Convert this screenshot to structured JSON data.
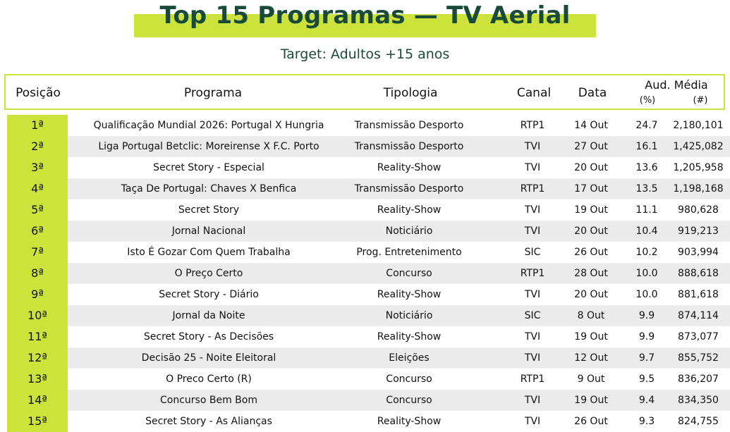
{
  "title": "Top 15 Programas — TV Aerial",
  "subtitle": "Target: Adultos +15 anos",
  "header": {
    "posicao": "Posição",
    "programa": "Programa",
    "tipologia": "Tipologia",
    "canal": "Canal",
    "data": "Data",
    "aud_media": "Aud. Média",
    "pct": "(%)",
    "num": "(#)"
  },
  "colors": {
    "accent": "#cbe33a",
    "title": "#1a4a38",
    "alt_row": "#ebebeb"
  },
  "rows": [
    {
      "pos": "1ª",
      "programa": "Qualificação Mundial 2026: Portugal X Hungria",
      "tipologia": "Transmissão Desporto",
      "canal": "RTP1",
      "data": "14 Out",
      "pct": "24.7",
      "num": "2,180,101"
    },
    {
      "pos": "2ª",
      "programa": "Liga Portugal Betclic: Moreirense X F.C. Porto",
      "tipologia": "Transmissão Desporto",
      "canal": "TVI",
      "data": "27 Out",
      "pct": "16.1",
      "num": "1,425,082"
    },
    {
      "pos": "3ª",
      "programa": "Secret Story - Especial",
      "tipologia": "Reality-Show",
      "canal": "TVI",
      "data": "20 Out",
      "pct": "13.6",
      "num": "1,205,958"
    },
    {
      "pos": "4ª",
      "programa": "Taça De Portugal: Chaves X Benfica",
      "tipologia": "Transmissão Desporto",
      "canal": "RTP1",
      "data": "17 Out",
      "pct": "13.5",
      "num": "1,198,168"
    },
    {
      "pos": "5ª",
      "programa": "Secret Story",
      "tipologia": "Reality-Show",
      "canal": "TVI",
      "data": "19 Out",
      "pct": "11.1",
      "num": "980,628"
    },
    {
      "pos": "6ª",
      "programa": "Jornal Nacional",
      "tipologia": "Noticiário",
      "canal": "TVI",
      "data": "20 Out",
      "pct": "10.4",
      "num": "919,213"
    },
    {
      "pos": "7ª",
      "programa": "Isto É Gozar Com Quem Trabalha",
      "tipologia": "Prog. Entretenimento",
      "canal": "SIC",
      "data": "26 Out",
      "pct": "10.2",
      "num": "903,994"
    },
    {
      "pos": "8ª",
      "programa": "O Preço Certo",
      "tipologia": "Concurso",
      "canal": "RTP1",
      "data": "28 Out",
      "pct": "10.0",
      "num": "888,618"
    },
    {
      "pos": "9ª",
      "programa": "Secret Story - Diário",
      "tipologia": "Reality-Show",
      "canal": "TVI",
      "data": "20 Out",
      "pct": "10.0",
      "num": "881,618"
    },
    {
      "pos": "10ª",
      "programa": "Jornal da Noite",
      "tipologia": "Noticiário",
      "canal": "SIC",
      "data": "8 Out",
      "pct": "9.9",
      "num": "874,114"
    },
    {
      "pos": "11ª",
      "programa": "Secret Story - As Decisões",
      "tipologia": "Reality-Show",
      "canal": "TVI",
      "data": "19 Out",
      "pct": "9.9",
      "num": "873,077"
    },
    {
      "pos": "12ª",
      "programa": "Decisão 25 - Noite Eleitoral",
      "tipologia": "Eleições",
      "canal": "TVI",
      "data": "12 Out",
      "pct": "9.7",
      "num": "855,752"
    },
    {
      "pos": "13ª",
      "programa": "O Preco Certo (R)",
      "tipologia": "Concurso",
      "canal": "RTP1",
      "data": "9 Out",
      "pct": "9.5",
      "num": "836,207"
    },
    {
      "pos": "14ª",
      "programa": "Concurso Bem Bom",
      "tipologia": "Concurso",
      "canal": "TVI",
      "data": "19 Out",
      "pct": "9.4",
      "num": "834,350"
    },
    {
      "pos": "15ª",
      "programa": "Secret Story - As Alianças",
      "tipologia": "Reality-Show",
      "canal": "TVI",
      "data": "26 Out",
      "pct": "9.3",
      "num": "824,755"
    }
  ]
}
